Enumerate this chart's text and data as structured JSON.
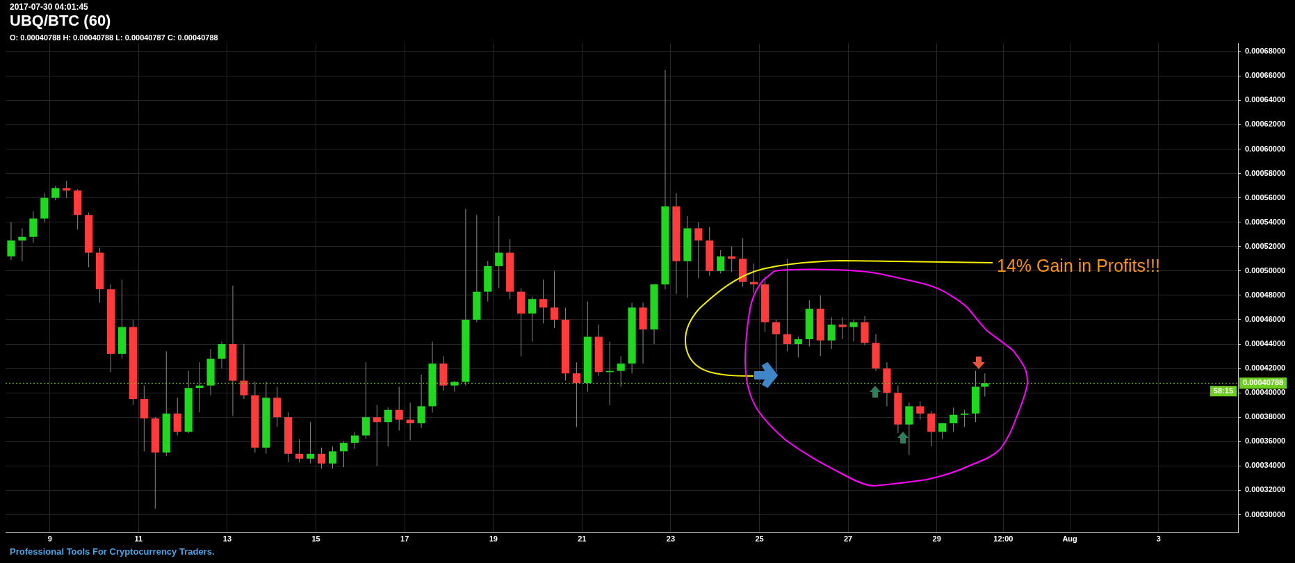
{
  "chart_data": {
    "type": "candlestick",
    "title": "UBQ/BTC (60)",
    "subtitle": "2017-07-30 04:01:45",
    "annotations": [
      "O: 0.00040788 H: 0.00040788 L: 0.00040787 C: 0.00040788",
      "14% Gain in Profits!!!",
      "58:15",
      "Professional Tools For Cryptocurrency Traders."
    ],
    "x": [
      "2017-07-08T03:00",
      "2017-07-08T09:00",
      "2017-07-08T15:00",
      "2017-07-08T21:00",
      "2017-07-09T03:00",
      "2017-07-09T09:00",
      "2017-07-09T15:00",
      "2017-07-09T21:00",
      "2017-07-10T03:00",
      "2017-07-10T09:00",
      "2017-07-10T15:00",
      "2017-07-10T21:00",
      "2017-07-11T03:00",
      "2017-07-11T09:00",
      "2017-07-11T15:00",
      "2017-07-11T21:00",
      "2017-07-12T03:00",
      "2017-07-12T09:00",
      "2017-07-12T15:00",
      "2017-07-12T21:00",
      "2017-07-13T03:00",
      "2017-07-13T09:00",
      "2017-07-13T15:00",
      "2017-07-13T21:00",
      "2017-07-14T03:00",
      "2017-07-14T09:00",
      "2017-07-14T15:00",
      "2017-07-14T21:00",
      "2017-07-15T03:00",
      "2017-07-15T09:00",
      "2017-07-15T15:00",
      "2017-07-15T21:00",
      "2017-07-16T03:00",
      "2017-07-16T09:00",
      "2017-07-16T15:00",
      "2017-07-16T21:00",
      "2017-07-17T03:00",
      "2017-07-17T09:00",
      "2017-07-17T15:00",
      "2017-07-17T21:00",
      "2017-07-18T03:00",
      "2017-07-18T09:00",
      "2017-07-18T15:00",
      "2017-07-18T21:00",
      "2017-07-19T03:00",
      "2017-07-19T09:00",
      "2017-07-19T15:00",
      "2017-07-19T21:00",
      "2017-07-20T03:00",
      "2017-07-20T09:00",
      "2017-07-20T15:00",
      "2017-07-20T21:00",
      "2017-07-21T03:00",
      "2017-07-21T09:00",
      "2017-07-21T15:00",
      "2017-07-21T21:00",
      "2017-07-22T03:00",
      "2017-07-22T09:00",
      "2017-07-22T15:00",
      "2017-07-22T21:00",
      "2017-07-23T03:00",
      "2017-07-23T09:00",
      "2017-07-23T15:00",
      "2017-07-23T21:00",
      "2017-07-24T03:00",
      "2017-07-24T09:00",
      "2017-07-24T15:00",
      "2017-07-24T21:00",
      "2017-07-25T03:00",
      "2017-07-25T09:00",
      "2017-07-25T15:00",
      "2017-07-25T21:00",
      "2017-07-26T03:00",
      "2017-07-26T09:00",
      "2017-07-26T15:00",
      "2017-07-26T21:00",
      "2017-07-27T03:00",
      "2017-07-27T09:00",
      "2017-07-27T15:00",
      "2017-07-27T21:00",
      "2017-07-28T03:00",
      "2017-07-28T09:00",
      "2017-07-28T15:00",
      "2017-07-28T21:00",
      "2017-07-29T03:00",
      "2017-07-29T09:00",
      "2017-07-29T15:00",
      "2017-07-29T21:00",
      "2017-07-30T02:00"
    ],
    "ohlc": [
      [
        0.000512,
        0.00054,
        0.000509,
        0.000525
      ],
      [
        0.000525,
        0.000535,
        0.000508,
        0.000528
      ],
      [
        0.000528,
        0.000549,
        0.000523,
        0.000543
      ],
      [
        0.000543,
        0.000564,
        0.00054,
        0.00056
      ],
      [
        0.00056,
        0.00057,
        0.000558,
        0.000568
      ],
      [
        0.000568,
        0.000574,
        0.00056,
        0.000566
      ],
      [
        0.000566,
        0.000567,
        0.000534,
        0.000546
      ],
      [
        0.000546,
        0.000548,
        0.000503,
        0.000515
      ],
      [
        0.000515,
        0.000519,
        0.000474,
        0.000485
      ],
      [
        0.000485,
        0.000489,
        0.000417,
        0.000432
      ],
      [
        0.000432,
        0.000493,
        0.000428,
        0.000454
      ],
      [
        0.000454,
        0.00046,
        0.00039,
        0.000395
      ],
      [
        0.000395,
        0.000406,
        0.000352,
        0.000379
      ],
      [
        0.000379,
        0.00038,
        0.000305,
        0.000351
      ],
      [
        0.000351,
        0.000434,
        0.000348,
        0.000383
      ],
      [
        0.000383,
        0.000396,
        0.000365,
        0.000368
      ],
      [
        0.000368,
        0.000418,
        0.000367,
        0.000404
      ],
      [
        0.000404,
        0.000425,
        0.000384,
        0.000406
      ],
      [
        0.000406,
        0.000436,
        0.000398,
        0.000428
      ],
      [
        0.000428,
        0.000442,
        0.00042,
        0.00044
      ],
      [
        0.00044,
        0.000488,
        0.000381,
        0.00041
      ],
      [
        0.00041,
        0.00044,
        0.000395,
        0.000398
      ],
      [
        0.000398,
        0.000409,
        0.000351,
        0.000355
      ],
      [
        0.000355,
        0.000409,
        0.00035,
        0.000396
      ],
      [
        0.000396,
        0.000405,
        0.000372,
        0.00038
      ],
      [
        0.00038,
        0.000384,
        0.000343,
        0.00035
      ],
      [
        0.00035,
        0.000362,
        0.000343,
        0.000346
      ],
      [
        0.000346,
        0.000376,
        0.000342,
        0.00035
      ],
      [
        0.00035,
        0.000355,
        0.000338,
        0.000342
      ],
      [
        0.000342,
        0.000356,
        0.000338,
        0.000352
      ],
      [
        0.000352,
        0.00036,
        0.000339,
        0.000359
      ],
      [
        0.000359,
        0.000368,
        0.000354,
        0.000365
      ],
      [
        0.000365,
        0.000425,
        0.000362,
        0.00038
      ],
      [
        0.00038,
        0.00039,
        0.00034,
        0.000376
      ],
      [
        0.000376,
        0.000388,
        0.000356,
        0.000386
      ],
      [
        0.000386,
        0.000405,
        0.000369,
        0.000378
      ],
      [
        0.000378,
        0.000392,
        0.000361,
        0.000375
      ],
      [
        0.000375,
        0.000415,
        0.000371,
        0.000389
      ],
      [
        0.000389,
        0.000442,
        0.000384,
        0.000424
      ],
      [
        0.000424,
        0.00043,
        0.000402,
        0.000406
      ],
      [
        0.000406,
        0.00041,
        0.000401,
        0.000409
      ],
      [
        0.000409,
        0.000551,
        0.000406,
        0.00046
      ],
      [
        0.00046,
        0.000546,
        0.000458,
        0.000483
      ],
      [
        0.000483,
        0.000508,
        0.000475,
        0.000504
      ],
      [
        0.000504,
        0.000545,
        0.000486,
        0.000515
      ],
      [
        0.000515,
        0.000526,
        0.000477,
        0.000483
      ],
      [
        0.000483,
        0.000486,
        0.00043,
        0.000465
      ],
      [
        0.000465,
        0.000479,
        0.000442,
        0.000477
      ],
      [
        0.000477,
        0.000493,
        0.000457,
        0.00047
      ],
      [
        0.00047,
        0.0005,
        0.000453,
        0.00046
      ],
      [
        0.00046,
        0.00047,
        0.00041,
        0.000416
      ],
      [
        0.000416,
        0.000425,
        0.000372,
        0.000408
      ],
      [
        0.000408,
        0.000475,
        0.000401,
        0.000446
      ],
      [
        0.000446,
        0.000456,
        0.000414,
        0.000417
      ],
      [
        0.000417,
        0.000442,
        0.00039,
        0.000418
      ],
      [
        0.000418,
        0.00043,
        0.000405,
        0.000424
      ],
      [
        0.000424,
        0.000474,
        0.000416,
        0.00047
      ],
      [
        0.00047,
        0.000474,
        0.000424,
        0.000452
      ],
      [
        0.000452,
        0.000489,
        0.00044,
        0.000489
      ],
      [
        0.000489,
        0.000665,
        0.000485,
        0.000553
      ],
      [
        0.000553,
        0.000564,
        0.000481,
        0.000508
      ],
      [
        0.000508,
        0.000545,
        0.000478,
        0.000535
      ],
      [
        0.000535,
        0.00054,
        0.000494,
        0.000525
      ],
      [
        0.000525,
        0.000536,
        0.000496,
        0.0005
      ],
      [
        0.0005,
        0.000517,
        0.000498,
        0.000512
      ],
      [
        0.000512,
        0.00052,
        0.000499,
        0.00051
      ],
      [
        0.00051,
        0.000527,
        0.000487,
        0.000491
      ],
      [
        0.000491,
        0.000506,
        0.000482,
        0.000489
      ],
      [
        0.000489,
        0.000495,
        0.00045,
        0.000458
      ],
      [
        0.000458,
        0.00046,
        0.000417,
        0.000448
      ],
      [
        0.000448,
        0.00051,
        0.000434,
        0.00044
      ],
      [
        0.00044,
        0.000446,
        0.000429,
        0.000444
      ],
      [
        0.000444,
        0.000476,
        0.000438,
        0.000469
      ],
      [
        0.000469,
        0.00048,
        0.00043,
        0.000443
      ],
      [
        0.000443,
        0.000462,
        0.000436,
        0.000456
      ],
      [
        0.000456,
        0.000462,
        0.000444,
        0.000454
      ],
      [
        0.000454,
        0.00046,
        0.000442,
        0.000458
      ],
      [
        0.000458,
        0.000463,
        0.000439,
        0.000441
      ],
      [
        0.000441,
        0.000448,
        0.000418,
        0.00042
      ],
      [
        0.00042,
        0.000425,
        0.000389,
        0.0004
      ],
      [
        0.0004,
        0.000406,
        0.000367,
        0.000374
      ],
      [
        0.000374,
        0.000392,
        0.000349,
        0.000389
      ],
      [
        0.000389,
        0.000393,
        0.000378,
        0.000383
      ],
      [
        0.000383,
        0.000385,
        0.000356,
        0.000368
      ],
      [
        0.000368,
        0.000375,
        0.000362,
        0.000375
      ],
      [
        0.000375,
        0.000388,
        0.000368,
        0.000382
      ],
      [
        0.000382,
        0.000386,
        0.000372,
        0.000383
      ],
      [
        0.000383,
        0.000418,
        0.000376,
        0.000405
      ],
      [
        0.000405,
        0.000416,
        0.000397,
        0.00040788
      ]
    ],
    "xlim": [
      "2017-07-08",
      "2017-08-04T19:00"
    ],
    "xticks": [
      {
        "value": "2017-07-09",
        "label": "9"
      },
      {
        "value": "2017-07-11",
        "label": "11"
      },
      {
        "value": "2017-07-13",
        "label": "13"
      },
      {
        "value": "2017-07-15",
        "label": "15"
      },
      {
        "value": "2017-07-17",
        "label": "17"
      },
      {
        "value": "2017-07-19",
        "label": "19"
      },
      {
        "value": "2017-07-21",
        "label": "21"
      },
      {
        "value": "2017-07-23",
        "label": "23"
      },
      {
        "value": "2017-07-25",
        "label": "25"
      },
      {
        "value": "2017-07-27",
        "label": "27"
      },
      {
        "value": "2017-07-29",
        "label": "29"
      },
      {
        "value": "2017-07-30T12:00",
        "label": "12:00"
      },
      {
        "value": "2017-08-01",
        "label": "Aug"
      },
      {
        "value": "2017-08-03",
        "label": "3"
      }
    ],
    "ylim": [
      0.000285,
      0.000687
    ],
    "yticks": [
      {
        "value": 0.0003,
        "label": "0.00030000"
      },
      {
        "value": 0.00032,
        "label": "0.00032000"
      },
      {
        "value": 0.00034,
        "label": "0.00034000"
      },
      {
        "value": 0.00036,
        "label": "0.00036000"
      },
      {
        "value": 0.00038,
        "label": "0.00038000"
      },
      {
        "value": 0.0004,
        "label": "0.00040000"
      },
      {
        "value": 0.00042,
        "label": "0.00042000"
      },
      {
        "value": 0.00044,
        "label": "0.00044000"
      },
      {
        "value": 0.00046,
        "label": "0.00046000"
      },
      {
        "value": 0.00048,
        "label": "0.00048000"
      },
      {
        "value": 0.0005,
        "label": "0.00050000"
      },
      {
        "value": 0.00052,
        "label": "0.00052000"
      },
      {
        "value": 0.00054,
        "label": "0.00054000"
      },
      {
        "value": 0.00056,
        "label": "0.00056000"
      },
      {
        "value": 0.00058,
        "label": "0.00058000"
      },
      {
        "value": 0.0006,
        "label": "0.00060000"
      },
      {
        "value": 0.00062,
        "label": "0.00062000"
      },
      {
        "value": 0.00064,
        "label": "0.00064000"
      },
      {
        "value": 0.00066,
        "label": "0.00066000"
      },
      {
        "value": 0.00068,
        "label": "0.00068000"
      }
    ],
    "ref_lines": [
      {
        "axis": "y",
        "value": 0.00040788,
        "label": "0.00040788",
        "color": "#6fcf1f",
        "line_style": "dotted"
      }
    ],
    "grid": true
  }
}
